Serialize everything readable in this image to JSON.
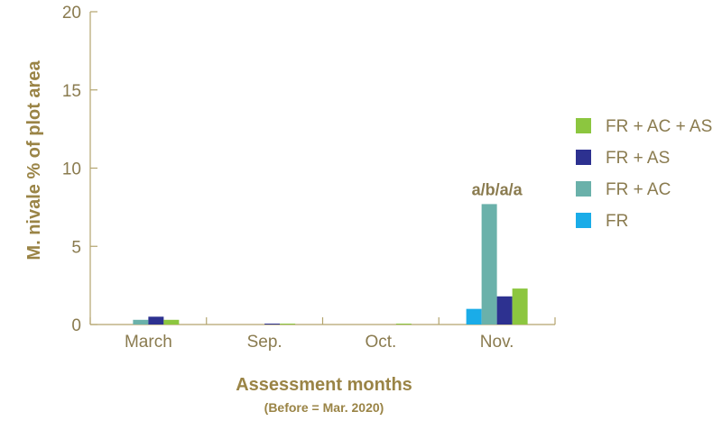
{
  "chart_data": {
    "type": "bar",
    "title": "",
    "xlabel": "Assessment months",
    "xlabel_sub": "(Before = Mar. 2020)",
    "ylabel": "M. nivale % of plot area",
    "ylim": [
      0,
      20
    ],
    "yticks": [
      0,
      5,
      10,
      15,
      20
    ],
    "categories": [
      "March",
      "Sep.",
      "Oct.",
      "Nov."
    ],
    "series": [
      {
        "name": "FR",
        "color": "#1aace8",
        "values": [
          0,
          0,
          0,
          1.0
        ]
      },
      {
        "name": "FR + AC",
        "color": "#6ab1aa",
        "values": [
          0.3,
          0,
          0,
          7.7
        ]
      },
      {
        "name": "FR + AS",
        "color": "#2d3190",
        "values": [
          0.5,
          0.02,
          0,
          1.8
        ]
      },
      {
        "name": "FR + AC + AS",
        "color": "#8cc63f",
        "values": [
          0.3,
          0.02,
          0.02,
          2.3
        ]
      }
    ],
    "legend_order": [
      "FR + AC + AS",
      "FR + AS",
      "FR + AC",
      "FR"
    ],
    "legend_position": "right",
    "annotations": [
      {
        "category": "Nov.",
        "text": "a/b/a/a"
      }
    ],
    "axis_color": "#b3a46e",
    "text_color": "#8a7b4f"
  }
}
